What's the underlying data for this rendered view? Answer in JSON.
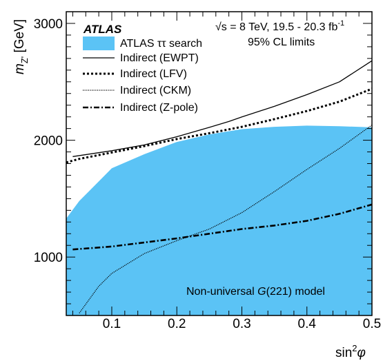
{
  "chart_data": {
    "type": "area",
    "experiment": "ATLAS",
    "energy_label": "√s = 8 TeV, 19.5 - 20.3 fb",
    "energy_superscript": "-1",
    "cl_label": "95% CL limits",
    "model_label_prefix": "Non-universal ",
    "model_label_g": "G",
    "model_label_suffix": "(221) model",
    "xlabel_main": "sin",
    "xlabel_sup": "2",
    "xlabel_phi": "φ",
    "ylabel_main": "m",
    "ylabel_sub": "Z'",
    "ylabel_unit": " [GeV]",
    "xlim": [
      0.03,
      0.5
    ],
    "ylim": [
      500,
      3100
    ],
    "x_ticks": [
      {
        "value": 0.1,
        "label": "0.1"
      },
      {
        "value": 0.2,
        "label": "0.2"
      },
      {
        "value": 0.3,
        "label": "0.3"
      },
      {
        "value": 0.4,
        "label": "0.4"
      },
      {
        "value": 0.5,
        "label": "0.5"
      }
    ],
    "y_ticks": [
      {
        "value": 1000,
        "label": "1000"
      },
      {
        "value": 2000,
        "label": "2000"
      },
      {
        "value": 3000,
        "label": "3000"
      }
    ],
    "legend": [
      {
        "key": "search",
        "label": "ATLAS ττ search"
      },
      {
        "key": "ewpt",
        "label": "Indirect (EWPT)"
      },
      {
        "key": "lfv",
        "label": "Indirect (LFV)"
      },
      {
        "key": "ckm",
        "label": "Indirect (CKM)"
      },
      {
        "key": "zpole",
        "label": "Indirect (Z-pole)"
      }
    ],
    "search_region": {
      "color": "#5bc3f5",
      "x": [
        0.03,
        0.05,
        0.1,
        0.15,
        0.2,
        0.25,
        0.3,
        0.35,
        0.4,
        0.45,
        0.5
      ],
      "y": [
        1330,
        1480,
        1760,
        1880,
        1985,
        2050,
        2095,
        2115,
        2125,
        2120,
        2110
      ]
    },
    "series": [
      {
        "key": "ewpt",
        "style": "solid",
        "x": [
          0.04,
          0.1,
          0.15,
          0.2,
          0.25,
          0.28,
          0.3,
          0.35,
          0.4,
          0.45,
          0.5
        ],
        "y": [
          1860,
          1910,
          1960,
          2030,
          2110,
          2160,
          2200,
          2290,
          2390,
          2500,
          2680
        ]
      },
      {
        "key": "lfv",
        "style": "dotted-thick",
        "x": [
          0.03,
          0.05,
          0.1,
          0.15,
          0.2,
          0.25,
          0.3,
          0.35,
          0.4,
          0.45,
          0.5
        ],
        "y": [
          1810,
          1840,
          1895,
          1950,
          2010,
          2060,
          2115,
          2180,
          2250,
          2330,
          2440
        ]
      },
      {
        "key": "ckm",
        "style": "dotted-fine",
        "x": [
          0.05,
          0.08,
          0.1,
          0.15,
          0.2,
          0.25,
          0.3,
          0.35,
          0.4,
          0.45,
          0.5
        ],
        "y": [
          520,
          750,
          860,
          1030,
          1140,
          1240,
          1380,
          1560,
          1750,
          1930,
          2130
        ]
      },
      {
        "key": "zpole",
        "style": "dashdot",
        "x": [
          0.04,
          0.1,
          0.15,
          0.2,
          0.25,
          0.3,
          0.35,
          0.4,
          0.45,
          0.5
        ],
        "y": [
          1065,
          1090,
          1125,
          1160,
          1200,
          1240,
          1270,
          1310,
          1370,
          1450
        ]
      }
    ]
  }
}
